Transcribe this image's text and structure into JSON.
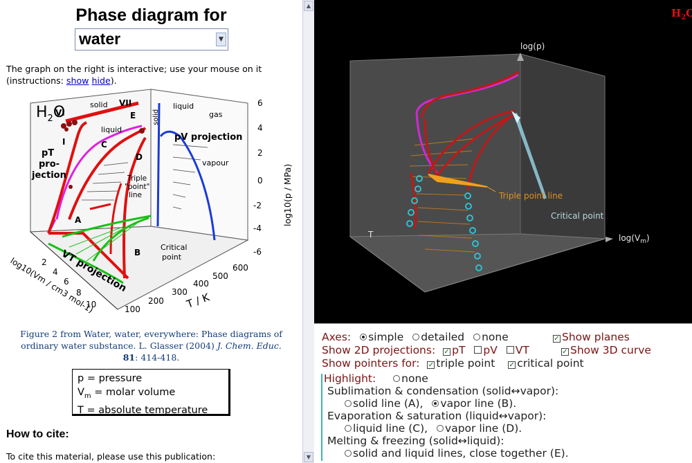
{
  "left": {
    "title": "Phase diagram for",
    "substance_select": "water",
    "intro_text": "The graph on the right is interactive; use your mouse on it (instructions:",
    "show_link": "show",
    "hide_link": "hide",
    "intro_end": ").",
    "figure": {
      "formula": "H",
      "formula_sub": "2",
      "formula_o": "O",
      "labels": {
        "solid_top": "solid",
        "vi": "VI",
        "vii": "VII",
        "e": "E",
        "liquid_left": "liquid",
        "c": "C",
        "d": "D",
        "i": "I",
        "pt_proj": "pT",
        "pt_proj2": "pro-",
        "pt_proj3": "jection",
        "a": "A",
        "b": "B",
        "vt_proj": "VT projection",
        "triple": "Triple",
        "triple2": "\"point\"",
        "triple3": "line",
        "critical": "Critical",
        "critical2": "point",
        "liquid_right": "liquid",
        "solid_right": "solid",
        "gas": "gas",
        "pv_proj": "pV projection",
        "vapour": "vapour",
        "p_axis": "log10(p / MPa)",
        "t_axis": "T / K",
        "v_axis": "log10(Vm / cm3 mol-1)"
      },
      "p_ticks": [
        "6",
        "4",
        "2",
        "0",
        "-2",
        "-4",
        "-6"
      ],
      "t_ticks": [
        "100",
        "200",
        "300",
        "400",
        "500",
        "600"
      ],
      "v_ticks": [
        "2",
        "4",
        "6",
        "8",
        "10"
      ]
    },
    "caption_line1": "Figure 2 from Water, water, everywhere: Phase diagrams of",
    "caption_line2a": "ordinary water substance. L. Glasser (2004) ",
    "caption_journal": "J. Chem. Educ.",
    "caption_vol": "81",
    "caption_pages": ": 414-418.",
    "legend": {
      "p": "p = pressure",
      "v": "V",
      "v_sub": "m",
      "v_rest": " = molar volume",
      "t": "T = absolute temperature"
    },
    "howto": "How to cite:",
    "cite": "To cite this material, please use this publication:"
  },
  "viewer": {
    "corner_label": "H",
    "corner_sub": "2",
    "corner_rest": "O",
    "axis_p": "log(p)",
    "axis_v": "log(V",
    "axis_v_sub": "m",
    "axis_v_end": ")",
    "axis_t": "T",
    "triple_label": "Triple point line",
    "critical_label": "Critical point"
  },
  "controls": {
    "axes_label": "Axes:",
    "axes_options": [
      "simple",
      "detailed",
      "none"
    ],
    "axes_selected": "simple",
    "show_planes": "Show planes",
    "show_2d_label": "Show 2D projections:",
    "proj_pt": "pT",
    "proj_pv": "pV",
    "proj_vt": "VT",
    "show_3d": "Show 3D curve",
    "pointers_label": "Show pointers for:",
    "pointer_triple": "triple point",
    "pointer_critical": "critical point",
    "highlight_label": "Highlight:",
    "highlight_none": "none",
    "sublimation": "Sublimation & condensation (solid↔vapor):",
    "solid_line_a": "solid line (A),",
    "vapor_line_b": "vapor line (B).",
    "evaporation": "Evaporation & saturation (liquid↔vapor):",
    "liquid_line_c": "liquid line (C),",
    "vapor_line_d": "vapor line (D).",
    "melting": "Melting & freezing (solid↔liquid):",
    "solid_liquid_e": "solid and liquid lines, close together (E)."
  },
  "colors": {
    "dark_red": "#7b1414",
    "viewer_bg": "#000000",
    "pointer_teal": "#3ab7a8",
    "link": "#0000cc"
  }
}
